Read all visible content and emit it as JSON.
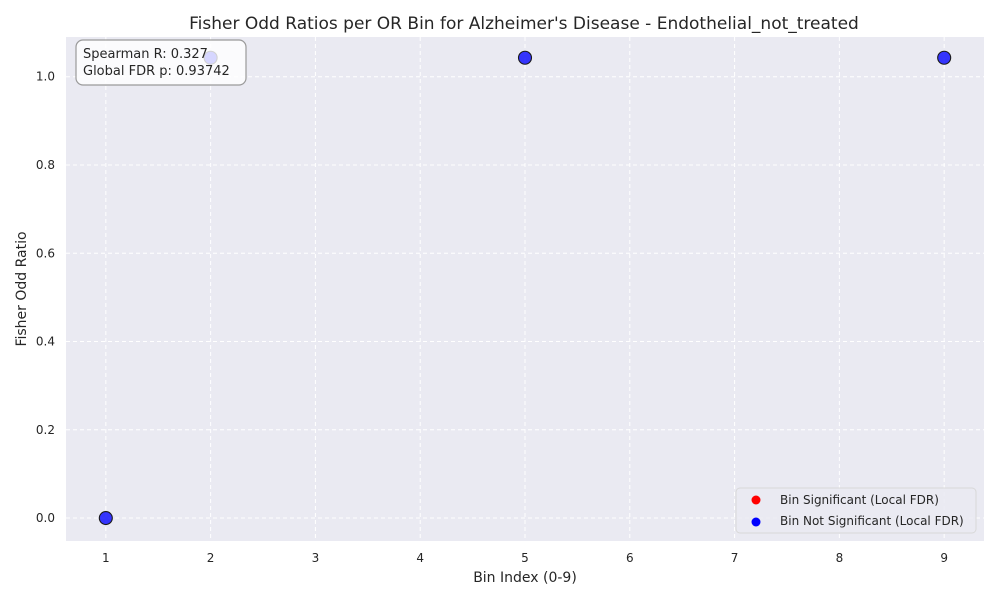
{
  "chart_data": {
    "type": "scatter",
    "title": "Fisher Odd Ratios per OR Bin for Alzheimer's Disease - Endothelial_not_treated",
    "xlabel": "Bin Index (0-9)",
    "ylabel": "Fisher Odd Ratio",
    "xlim": [
      0.62,
      9.38
    ],
    "ylim": [
      -0.052,
      1.09
    ],
    "xticks": [
      1,
      2,
      3,
      4,
      5,
      6,
      7,
      8,
      9
    ],
    "yticks": [
      0.0,
      0.2,
      0.4,
      0.6,
      0.8,
      1.0
    ],
    "grid": true,
    "legend_position": "bottom-right",
    "series": [
      {
        "name": "Bin Significant (Local FDR)",
        "color": "#ff0000",
        "points": []
      },
      {
        "name": "Bin Not Significant (Local FDR)",
        "color": "#0000ff",
        "points": [
          {
            "x": 1,
            "y": 0.0
          },
          {
            "x": 2,
            "y": 1.043
          },
          {
            "x": 5,
            "y": 1.043
          },
          {
            "x": 9,
            "y": 1.043
          }
        ]
      }
    ],
    "annotation": {
      "line1": "Spearman R: 0.327",
      "line2": "Global FDR p: 0.93742"
    }
  }
}
